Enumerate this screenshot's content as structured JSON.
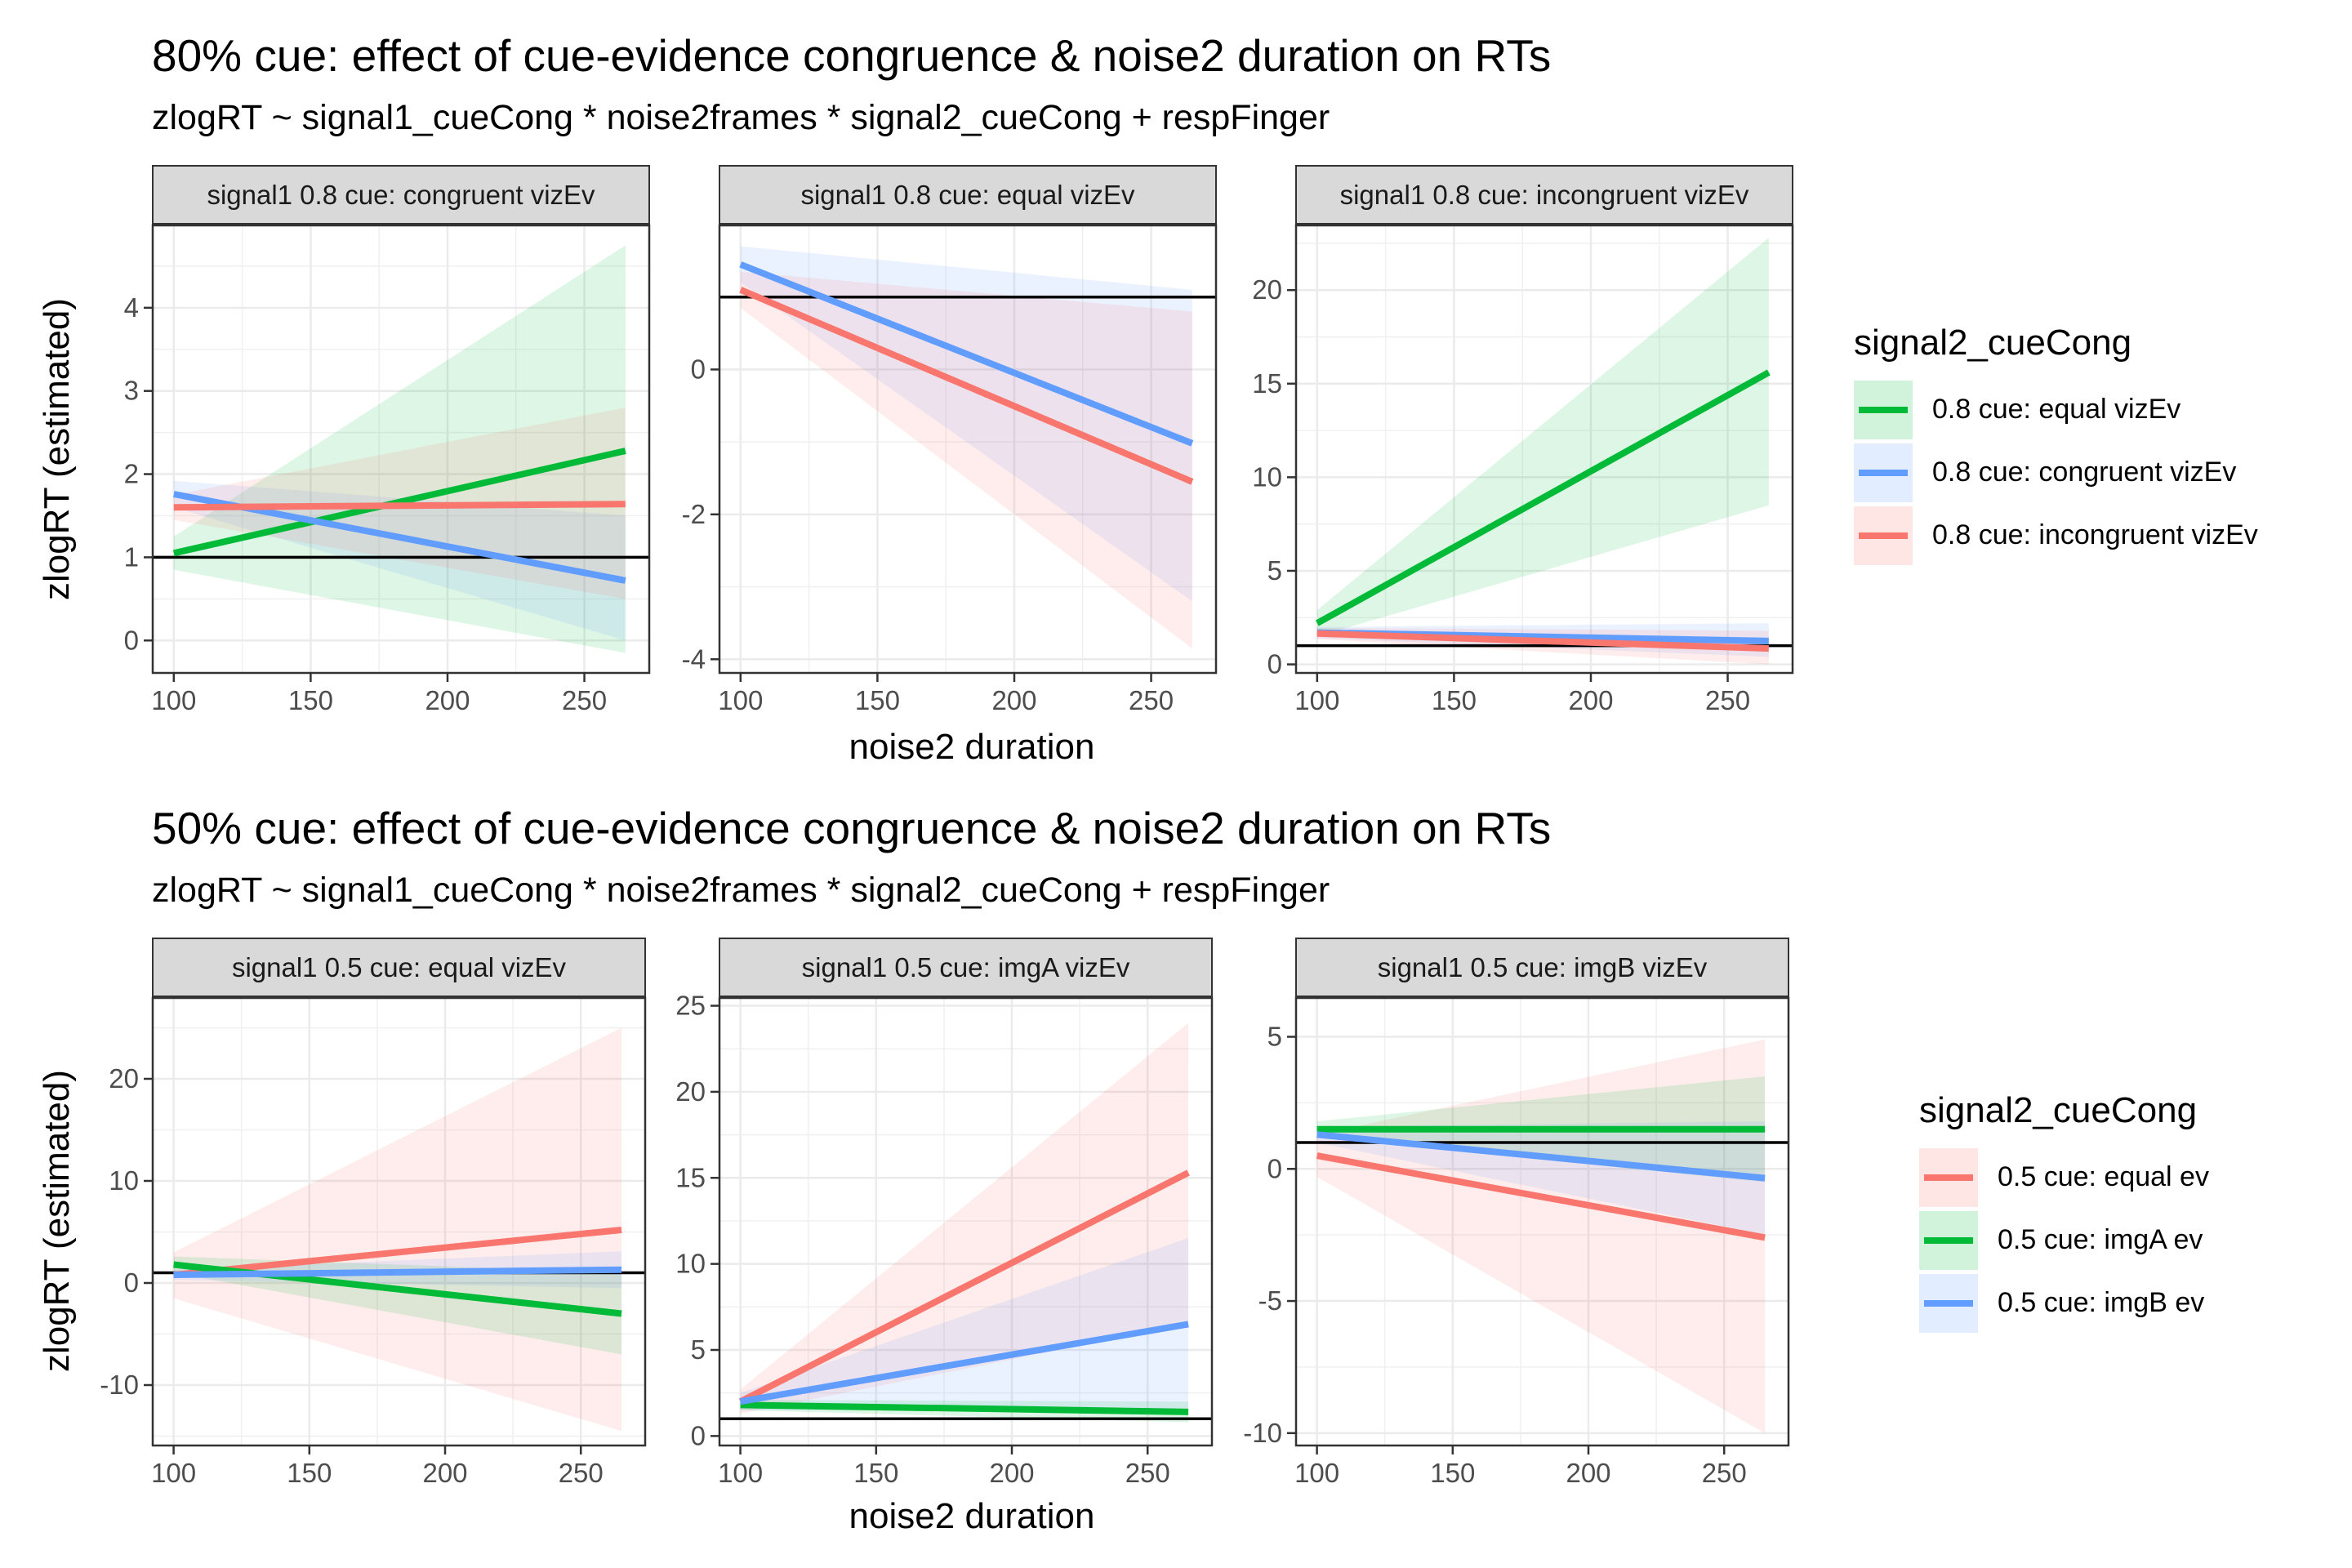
{
  "colors": {
    "green": "#00BA38",
    "blue": "#619CFF",
    "red": "#F8766D"
  },
  "sections": [
    {
      "title": "80% cue: effect of cue-evidence congruence & noise2 duration on RTs",
      "subtitle": "zlogRT ~ signal1_cueCong * noise2frames * signal2_cueCong + respFinger",
      "xlabel": "noise2 duration",
      "ylabel": "zlogRT (estimated)",
      "legend": {
        "title": "signal2_cueCong",
        "items": [
          {
            "label": "0.8 cue: equal vizEv",
            "color": "#00BA38"
          },
          {
            "label": "0.8 cue: congruent vizEv",
            "color": "#619CFF"
          },
          {
            "label": "0.8 cue: incongruent vizEv",
            "color": "#F8766D"
          }
        ]
      }
    },
    {
      "title": "50% cue: effect of cue-evidence congruence & noise2 duration on RTs",
      "subtitle": "zlogRT ~ signal1_cueCong * noise2frames * signal2_cueCong + respFinger",
      "xlabel": "noise2 duration",
      "ylabel": "zlogRT (estimated)",
      "legend": {
        "title": "signal2_cueCong",
        "items": [
          {
            "label": "0.5 cue: equal ev",
            "color": "#F8766D"
          },
          {
            "label": "0.5 cue: imgA ev",
            "color": "#00BA38"
          },
          {
            "label": "0.5 cue: imgB ev",
            "color": "#619CFF"
          }
        ]
      }
    }
  ],
  "chart_data": [
    {
      "type": "line",
      "section": 0,
      "title": "signal1 0.8 cue: congruent vizEv",
      "xlim": [
        92,
        274
      ],
      "ylim": [
        -0.4,
        5.0
      ],
      "xticks": [
        100,
        150,
        200,
        250
      ],
      "yticks": [
        0,
        1,
        2,
        3,
        4
      ],
      "hline": 1,
      "series": [
        {
          "name": "0.8 cue: equal vizEv",
          "color": "#00BA38",
          "x": [
            100,
            265
          ],
          "y": [
            1.05,
            2.28
          ],
          "lower": [
            0.85,
            -0.15
          ],
          "upper": [
            1.25,
            4.75
          ]
        },
        {
          "name": "0.8 cue: congruent vizEv",
          "color": "#619CFF",
          "x": [
            100,
            265
          ],
          "y": [
            1.76,
            0.72
          ],
          "lower": [
            1.6,
            0.0
          ],
          "upper": [
            1.92,
            1.5
          ]
        },
        {
          "name": "0.8 cue: incongruent vizEv",
          "color": "#F8766D",
          "x": [
            100,
            265
          ],
          "y": [
            1.6,
            1.64
          ],
          "lower": [
            1.45,
            0.5
          ],
          "upper": [
            1.75,
            2.8
          ]
        }
      ]
    },
    {
      "type": "line",
      "section": 0,
      "title": "signal1 0.8 cue: equal vizEv",
      "xlim": [
        92,
        274
      ],
      "ylim": [
        -4.2,
        2.0
      ],
      "xticks": [
        100,
        150,
        200,
        250
      ],
      "yticks": [
        -4,
        -2,
        0
      ],
      "hline": 1,
      "series": [
        {
          "name": "0.8 cue: congruent vizEv",
          "color": "#619CFF",
          "x": [
            100,
            265
          ],
          "y": [
            1.45,
            -1.02
          ],
          "lower": [
            1.2,
            -3.2
          ],
          "upper": [
            1.7,
            1.1
          ]
        },
        {
          "name": "0.8 cue: incongruent vizEv",
          "color": "#F8766D",
          "x": [
            100,
            265
          ],
          "y": [
            1.1,
            -1.55
          ],
          "lower": [
            0.85,
            -3.85
          ],
          "upper": [
            1.35,
            0.8
          ]
        }
      ]
    },
    {
      "type": "line",
      "section": 0,
      "title": "signal1 0.8 cue: incongruent vizEv",
      "xlim": [
        92,
        274
      ],
      "ylim": [
        -0.5,
        23.5
      ],
      "xticks": [
        100,
        150,
        200,
        250
      ],
      "yticks": [
        0,
        5,
        10,
        15,
        20
      ],
      "hline": 1,
      "series": [
        {
          "name": "0.8 cue: equal vizEv",
          "color": "#00BA38",
          "x": [
            100,
            265
          ],
          "y": [
            2.2,
            15.6
          ],
          "lower": [
            1.5,
            8.5
          ],
          "upper": [
            2.9,
            22.8
          ]
        },
        {
          "name": "0.8 cue: congruent vizEv",
          "color": "#619CFF",
          "x": [
            100,
            265
          ],
          "y": [
            1.7,
            1.25
          ],
          "lower": [
            1.4,
            0.4
          ],
          "upper": [
            2.0,
            2.2
          ]
        },
        {
          "name": "0.8 cue: incongruent vizEv",
          "color": "#F8766D",
          "x": [
            100,
            265
          ],
          "y": [
            1.65,
            0.85
          ],
          "lower": [
            1.35,
            0.0
          ],
          "upper": [
            1.95,
            1.8
          ]
        }
      ]
    },
    {
      "type": "line",
      "section": 1,
      "title": "signal1 0.5 cue: equal vizEv",
      "xlim": [
        92,
        274
      ],
      "ylim": [
        -16,
        28
      ],
      "xticks": [
        100,
        150,
        200,
        250
      ],
      "yticks": [
        -10,
        0,
        10,
        20
      ],
      "hline": 1,
      "series": [
        {
          "name": "0.5 cue: equal ev",
          "color": "#F8766D",
          "x": [
            100,
            265
          ],
          "y": [
            0.8,
            5.2
          ],
          "lower": [
            -1.5,
            -14.5
          ],
          "upper": [
            3.0,
            25.0
          ]
        },
        {
          "name": "0.5 cue: imgA ev",
          "color": "#00BA38",
          "x": [
            100,
            265
          ],
          "y": [
            1.8,
            -3.0
          ],
          "lower": [
            1.0,
            -7.0
          ],
          "upper": [
            2.6,
            1.0
          ]
        },
        {
          "name": "0.5 cue: imgB ev",
          "color": "#619CFF",
          "x": [
            100,
            265
          ],
          "y": [
            0.8,
            1.3
          ],
          "lower": [
            0.3,
            -0.5
          ],
          "upper": [
            1.3,
            3.1
          ]
        }
      ]
    },
    {
      "type": "line",
      "section": 1,
      "title": "signal1 0.5 cue: imgA vizEv",
      "xlim": [
        92,
        274
      ],
      "ylim": [
        -0.6,
        25.5
      ],
      "xticks": [
        100,
        150,
        200,
        250
      ],
      "yticks": [
        0,
        5,
        10,
        15,
        20,
        25
      ],
      "hline": 1,
      "series": [
        {
          "name": "0.5 cue: equal ev",
          "color": "#F8766D",
          "x": [
            100,
            265
          ],
          "y": [
            2.0,
            15.3
          ],
          "lower": [
            1.3,
            6.5
          ],
          "upper": [
            2.7,
            24.0
          ]
        },
        {
          "name": "0.5 cue: imgA ev",
          "color": "#00BA38",
          "x": [
            100,
            265
          ],
          "y": [
            1.8,
            1.4
          ],
          "lower": [
            1.5,
            0.8
          ],
          "upper": [
            2.1,
            2.0
          ]
        },
        {
          "name": "0.5 cue: imgB ev",
          "color": "#619CFF",
          "x": [
            100,
            265
          ],
          "y": [
            2.0,
            6.5
          ],
          "lower": [
            1.5,
            1.5
          ],
          "upper": [
            2.5,
            11.5
          ]
        }
      ]
    },
    {
      "type": "line",
      "section": 1,
      "title": "signal1 0.5 cue: imgB vizEv",
      "xlim": [
        92,
        274
      ],
      "ylim": [
        -10.5,
        6.5
      ],
      "xticks": [
        100,
        150,
        200,
        250
      ],
      "yticks": [
        -10,
        -5,
        0,
        5
      ],
      "hline": 1,
      "series": [
        {
          "name": "0.5 cue: equal ev",
          "color": "#F8766D",
          "x": [
            100,
            265
          ],
          "y": [
            0.5,
            -2.6
          ],
          "lower": [
            -0.3,
            -10.0
          ],
          "upper": [
            1.3,
            4.9
          ]
        },
        {
          "name": "0.5 cue: imgA ev",
          "color": "#00BA38",
          "x": [
            100,
            265
          ],
          "y": [
            1.5,
            1.5
          ],
          "lower": [
            1.2,
            -0.5
          ],
          "upper": [
            1.8,
            3.5
          ]
        },
        {
          "name": "0.5 cue: imgB ev",
          "color": "#619CFF",
          "x": [
            100,
            265
          ],
          "y": [
            1.3,
            -0.35
          ],
          "lower": [
            1.0,
            -2.5
          ],
          "upper": [
            1.6,
            1.8
          ]
        }
      ]
    }
  ]
}
